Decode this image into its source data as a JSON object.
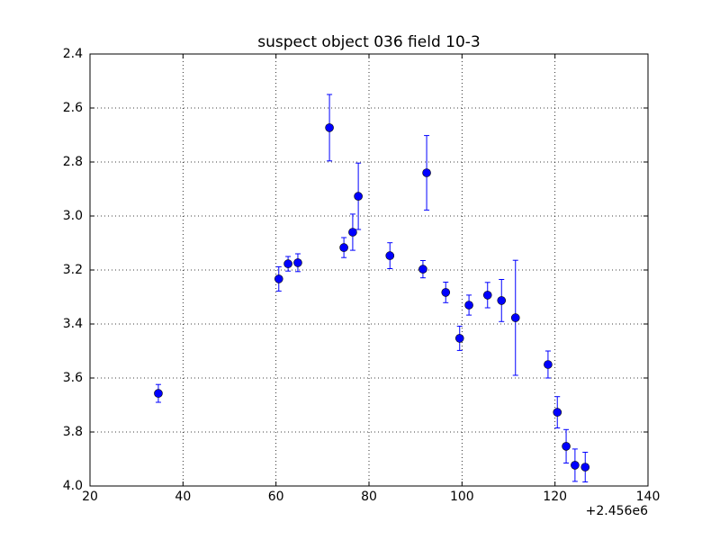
{
  "chart_data": {
    "type": "errorbar",
    "title": "suspect object 036 field 10-3",
    "x_offset_label": "+2.456e6",
    "color": "#0000ff",
    "grid": true,
    "y_inverted": true,
    "xlim": [
      20,
      140
    ],
    "xticks": [
      20,
      40,
      60,
      80,
      100,
      120,
      140
    ],
    "ylim": [
      2.4,
      4.0
    ],
    "yticks": [
      2.4,
      2.6,
      2.8,
      {
        "value": 3,
        "label": "3.0"
      },
      3.2,
      3.4,
      3.6,
      3.8,
      {
        "value": 4,
        "label": "4.0"
      }
    ],
    "x": [
      34.7,
      60.6,
      62.6,
      64.7,
      71.5,
      74.6,
      76.5,
      77.7,
      84.5,
      91.6,
      92.4,
      96.5,
      99.5,
      101.5,
      105.5,
      108.5,
      111.5,
      118.5,
      120.5,
      122.4,
      124.3,
      126.5
    ],
    "values": [
      3.657,
      3.233,
      3.177,
      3.173,
      2.673,
      3.117,
      3.06,
      2.927,
      3.147,
      3.197,
      2.84,
      3.283,
      3.453,
      3.33,
      3.293,
      3.313,
      3.377,
      3.55,
      3.727,
      3.853,
      3.923,
      3.93
    ],
    "errors": [
      0.033,
      0.045,
      0.027,
      0.033,
      0.123,
      0.037,
      0.067,
      0.123,
      0.048,
      0.032,
      0.138,
      0.038,
      0.045,
      0.037,
      0.047,
      0.078,
      0.213,
      0.05,
      0.058,
      0.062,
      0.06,
      0.055
    ]
  }
}
